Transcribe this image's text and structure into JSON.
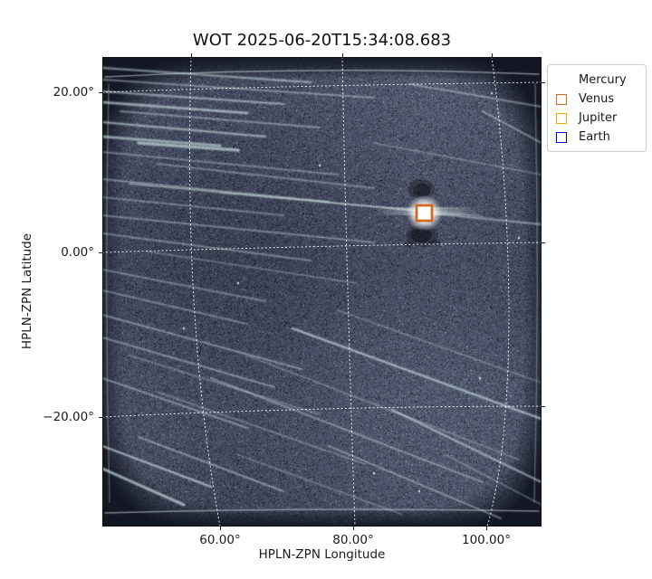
{
  "title": "WOT 2025-06-20T15:34:08.683",
  "axes": {
    "x": {
      "label": "HPLN-ZPN Longitude",
      "ticks": [
        "60.00°",
        "80.00°",
        "100.00°"
      ]
    },
    "y": {
      "label": "HPLN-ZPN Latitude",
      "ticks": [
        "20.00°",
        "0.00°",
        "−20.00°"
      ]
    }
  },
  "legend": {
    "items": [
      {
        "label": "Mercury",
        "color": "#ffffff"
      },
      {
        "label": "Venus",
        "color": "#d2691e"
      },
      {
        "label": "Jupiter",
        "color": "#ffa500"
      },
      {
        "label": "Earth",
        "color": "#0000ff"
      }
    ]
  },
  "marker": {
    "planet": "Venus",
    "color": "#d2691e",
    "lon_deg": 90.6,
    "lat_deg": 5.3
  },
  "chart_data": {
    "type": "heatmap",
    "title": "WOT 2025-06-20T15:34:08.683",
    "xlabel": "HPLN-ZPN Longitude",
    "ylabel": "HPLN-ZPN Latitude",
    "xlim": [
      42.3,
      108.3
    ],
    "ylim": [
      -33.6,
      24.4
    ],
    "x_ticks_deg": [
      60,
      80,
      100
    ],
    "y_ticks_deg": [
      20,
      0,
      -20
    ],
    "grid": true,
    "grid_style": "white-dotted-curved-ZPN-graticule",
    "legend_position": "upper-right-outside",
    "image_description": "dark slate-blue heliospheric imager exposure with pale diagonal star streaks, dark vignetted frame, bright saturated planet near lon 90.6° lat 5.3° with dark bleed artifacts above and below",
    "annotations": [
      {
        "label": "Venus",
        "lon_deg": 90.6,
        "lat_deg": 5.3,
        "marker": "square-outline",
        "color": "#d2691e",
        "visible": true
      },
      {
        "label": "Mercury",
        "marker": "square-outline",
        "color": "#ffffff",
        "visible": false
      },
      {
        "label": "Jupiter",
        "marker": "square-outline",
        "color": "#ffa500",
        "visible": false
      },
      {
        "label": "Earth",
        "marker": "square-outline",
        "color": "#0000ff",
        "visible": false
      }
    ]
  }
}
